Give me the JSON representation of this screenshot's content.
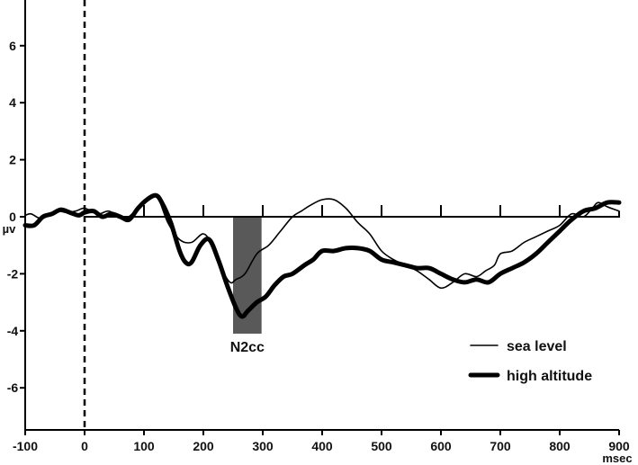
{
  "chart_data": {
    "type": "line",
    "title": "",
    "xlabel": "msec",
    "ylabel": "µv",
    "xlim": [
      -100,
      900
    ],
    "ylim": [
      -7.5,
      7.5
    ],
    "x_ticks": [
      -100,
      0,
      100,
      200,
      300,
      400,
      500,
      600,
      700,
      800,
      900
    ],
    "y_ticks": [
      6,
      4,
      2,
      0,
      -2,
      -4,
      -6
    ],
    "zero_line_ticks": [
      100,
      200,
      300,
      400,
      500,
      600,
      700,
      800
    ],
    "onset_line_x": 0,
    "legend_position": "bottom-right",
    "highlight_window": {
      "label": "N2cc",
      "x_range": [
        250,
        298
      ],
      "y_range": [
        -4.1,
        0
      ]
    },
    "series": [
      {
        "name": "sea level",
        "style": "thin",
        "color": "#000000",
        "x": [
          -100,
          -90,
          -75,
          -60,
          -45,
          -30,
          -15,
          0,
          15,
          25,
          40,
          55,
          70,
          85,
          100,
          115,
          125,
          140,
          160,
          180,
          200,
          215,
          230,
          245,
          255,
          270,
          290,
          310,
          330,
          350,
          365,
          380,
          400,
          420,
          440,
          460,
          480,
          500,
          520,
          540,
          560,
          580,
          600,
          620,
          640,
          660,
          675,
          690,
          700,
          720,
          740,
          760,
          780,
          800,
          820,
          840,
          855,
          865,
          880,
          900
        ],
        "y": [
          0.05,
          0.1,
          -0.05,
          0.1,
          0.2,
          0.15,
          0.2,
          0.3,
          0.15,
          0.1,
          0.2,
          0.05,
          -0.05,
          0.2,
          0.5,
          0.7,
          0.6,
          -0.2,
          -0.8,
          -0.9,
          -0.6,
          -1.0,
          -1.8,
          -2.3,
          -2.2,
          -2.0,
          -1.3,
          -1.0,
          -0.5,
          0.0,
          0.2,
          0.4,
          0.6,
          0.6,
          0.3,
          -0.2,
          -0.6,
          -1.2,
          -1.5,
          -1.7,
          -1.9,
          -2.2,
          -2.5,
          -2.3,
          -2.0,
          -2.1,
          -1.9,
          -1.7,
          -1.3,
          -1.2,
          -0.9,
          -0.7,
          -0.5,
          -0.3,
          0.1,
          0.0,
          0.3,
          0.5,
          0.35,
          0.2
        ]
      },
      {
        "name": "high altitude",
        "style": "thick",
        "color": "#000000",
        "x": [
          -100,
          -85,
          -70,
          -55,
          -40,
          -25,
          -10,
          0,
          15,
          30,
          45,
          60,
          75,
          90,
          105,
          120,
          130,
          145,
          160,
          170,
          180,
          195,
          210,
          225,
          240,
          255,
          265,
          275,
          290,
          305,
          320,
          335,
          350,
          370,
          385,
          400,
          420,
          440,
          460,
          480,
          500,
          520,
          540,
          560,
          580,
          600,
          620,
          640,
          660,
          680,
          700,
          720,
          740,
          760,
          780,
          800,
          820,
          840,
          860,
          880,
          900
        ],
        "y": [
          -0.3,
          -0.3,
          0.0,
          0.1,
          0.25,
          0.15,
          0.05,
          0.15,
          0.2,
          0.0,
          0.1,
          0.0,
          -0.1,
          0.3,
          0.6,
          0.75,
          0.5,
          -0.2,
          -1.2,
          -1.6,
          -1.6,
          -1.0,
          -0.8,
          -1.5,
          -2.4,
          -3.2,
          -3.5,
          -3.3,
          -3.0,
          -2.8,
          -2.4,
          -2.1,
          -2.0,
          -1.7,
          -1.5,
          -1.2,
          -1.2,
          -1.1,
          -1.1,
          -1.2,
          -1.5,
          -1.6,
          -1.7,
          -1.8,
          -1.8,
          -2.0,
          -2.2,
          -2.3,
          -2.2,
          -2.3,
          -2.0,
          -1.8,
          -1.6,
          -1.3,
          -0.9,
          -0.5,
          -0.1,
          0.2,
          0.3,
          0.5,
          0.5
        ]
      }
    ]
  }
}
